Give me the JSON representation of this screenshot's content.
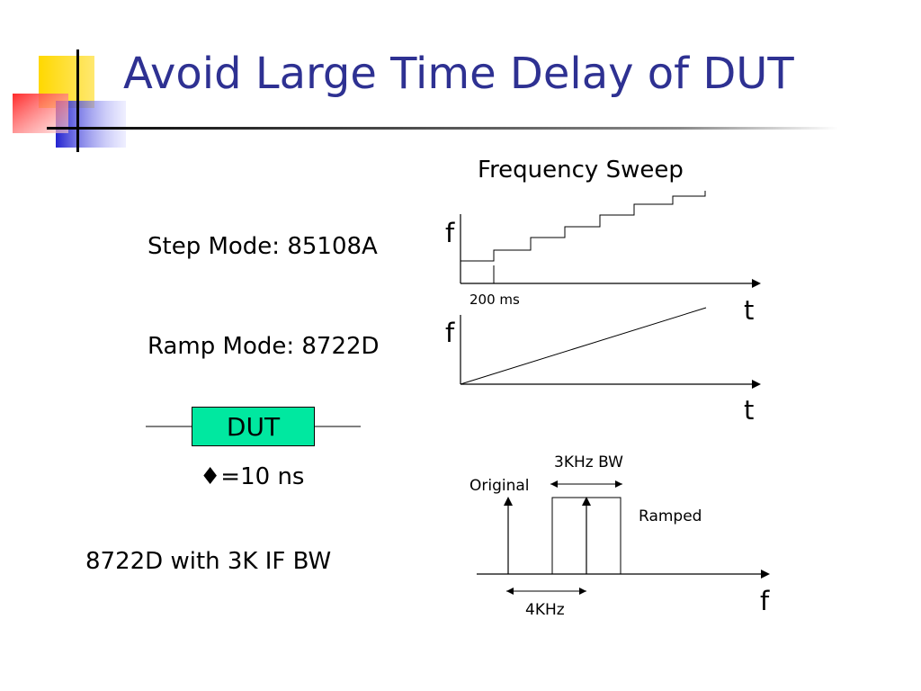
{
  "slide": {
    "title": "Avoid Large Time Delay of DUT",
    "diagram_heading": "Frequency Sweep",
    "step_mode_label": "Step Mode: 85108A",
    "ramp_mode_label": "Ramp Mode: 8722D",
    "dut_label": "DUT",
    "delay_label": "♦=10 ns",
    "ifbw_label": "8722D with 3K IF BW"
  },
  "step_plot": {
    "y_axis": "f",
    "x_axis": "t",
    "step_time": "200 ms"
  },
  "ramp_plot": {
    "y_axis": "f",
    "x_axis": "t"
  },
  "spectrum_plot": {
    "original_label": "Original",
    "bw_label": "3KHz BW",
    "ramped_label": "Ramped",
    "offset_label": "4KHz",
    "x_axis": "f"
  },
  "colors": {
    "title": "#2e3192",
    "dut_fill": "#00e8a0",
    "logo_yellow": "#ffd800",
    "logo_red": "#ff3b3b",
    "logo_blue": "#2a2ad0"
  }
}
